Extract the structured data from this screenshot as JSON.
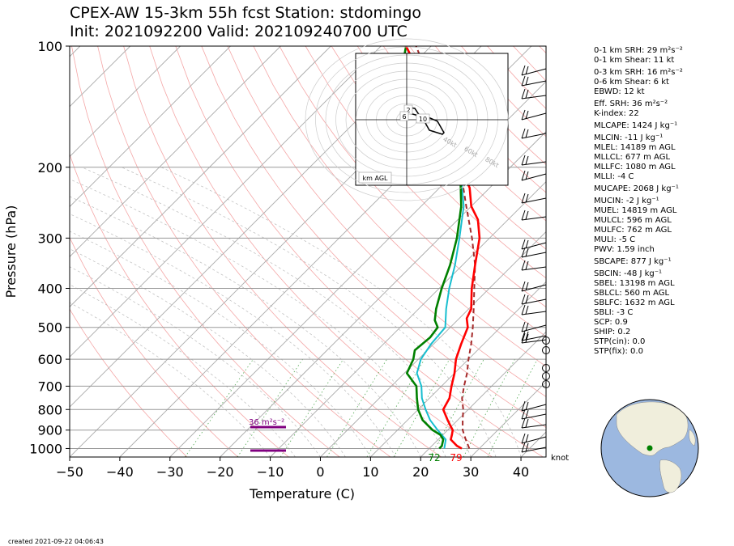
{
  "header": {
    "title_line1": "CPEX-AW 15-3km  55h fcst  Station: stdomingo",
    "title_line2": "Init: 2021092200  Valid: 202109240700 UTC"
  },
  "chart_data": {
    "type": "skew-t",
    "xlabel": "Temperature (C)",
    "ylabel": "Pressure (hPa)",
    "xlim": [
      -50,
      45
    ],
    "ylim": [
      1050,
      100
    ],
    "x_ticks": [
      "−50",
      "−40",
      "−30",
      "−20",
      "−10",
      "0",
      "10",
      "20",
      "30",
      "40"
    ],
    "x_tick_values": [
      -50,
      -40,
      -30,
      -20,
      -10,
      0,
      10,
      20,
      30,
      40
    ],
    "p_ticks": [
      "100",
      "200",
      "300",
      "400",
      "500",
      "600",
      "700",
      "800",
      "900",
      "1000"
    ],
    "p_tick_values": [
      100,
      200,
      300,
      400,
      500,
      600,
      700,
      800,
      900,
      1000
    ],
    "temperature": [
      [
        1000,
        26.5
      ],
      [
        985,
        25.0
      ],
      [
        950,
        22.5
      ],
      [
        925,
        21.8
      ],
      [
        900,
        21.0
      ],
      [
        875,
        19.5
      ],
      [
        850,
        18.0
      ],
      [
        800,
        15.0
      ],
      [
        750,
        14.0
      ],
      [
        700,
        12.0
      ],
      [
        650,
        10.0
      ],
      [
        600,
        7.5
      ],
      [
        550,
        5.5
      ],
      [
        500,
        3.5
      ],
      [
        475,
        1.5
      ],
      [
        450,
        0.5
      ],
      [
        400,
        -3.5
      ],
      [
        350,
        -7.5
      ],
      [
        300,
        -12.0
      ],
      [
        270,
        -16.0
      ],
      [
        250,
        -20.0
      ],
      [
        225,
        -24.0
      ],
      [
        200,
        -30.0
      ],
      [
        175,
        -37.0
      ],
      [
        150,
        -44.0
      ],
      [
        140,
        -47.0
      ],
      [
        125,
        -53.0
      ],
      [
        110,
        -60.0
      ],
      [
        100,
        -65.0
      ]
    ],
    "dewpoint": [
      [
        1000,
        22.0
      ],
      [
        985,
        22.0
      ],
      [
        950,
        21.0
      ],
      [
        925,
        19.5
      ],
      [
        900,
        17.0
      ],
      [
        850,
        13.0
      ],
      [
        800,
        10.0
      ],
      [
        750,
        7.5
      ],
      [
        700,
        5.0
      ],
      [
        650,
        0.5
      ],
      [
        600,
        -1.0
      ],
      [
        570,
        -2.5
      ],
      [
        530,
        -2.0
      ],
      [
        500,
        -2.5
      ],
      [
        480,
        -4.5
      ],
      [
        450,
        -6.5
      ],
      [
        400,
        -9.5
      ],
      [
        350,
        -12.5
      ],
      [
        300,
        -16.5
      ],
      [
        250,
        -22.0
      ],
      [
        200,
        -30.0
      ],
      [
        175,
        -38.0
      ],
      [
        150,
        -45.0
      ],
      [
        125,
        -55.0
      ],
      [
        115,
        -61.0
      ],
      [
        100,
        -65.0
      ]
    ],
    "wet_bulb": [
      [
        1000,
        23.0
      ],
      [
        950,
        21.5
      ],
      [
        900,
        18.0
      ],
      [
        850,
        14.5
      ],
      [
        800,
        11.5
      ],
      [
        750,
        8.5
      ],
      [
        700,
        6.0
      ],
      [
        650,
        2.5
      ],
      [
        600,
        0.5
      ],
      [
        550,
        -0.5
      ],
      [
        500,
        -1.0
      ],
      [
        450,
        -4.5
      ],
      [
        400,
        -8.0
      ],
      [
        350,
        -11.5
      ],
      [
        300,
        -16.0
      ],
      [
        250,
        -21.5
      ],
      [
        200,
        -30.0
      ],
      [
        150,
        -45.0
      ],
      [
        100,
        -65.0
      ]
    ],
    "parcel": [
      [
        1000,
        28.0
      ],
      [
        950,
        25.5
      ],
      [
        900,
        23.0
      ],
      [
        850,
        21.0
      ],
      [
        800,
        19.0
      ],
      [
        750,
        16.5
      ],
      [
        700,
        14.5
      ],
      [
        650,
        12.5
      ],
      [
        600,
        10.0
      ],
      [
        550,
        7.5
      ],
      [
        500,
        4.5
      ],
      [
        450,
        1.0
      ],
      [
        400,
        -3.0
      ],
      [
        350,
        -7.5
      ],
      [
        300,
        -13.5
      ],
      [
        250,
        -21.0
      ],
      [
        200,
        -30.0
      ],
      [
        175,
        -36.0
      ],
      [
        150,
        -43.0
      ],
      [
        125,
        -52.0
      ],
      [
        100,
        -63.0
      ]
    ],
    "dewpoint_label": "72",
    "temperature_label": "79",
    "srh_bar_label": "36 m²s⁻²",
    "wind_unit_label": "knot",
    "hodograph": {
      "height_labels": [
        "2",
        "6",
        "10"
      ],
      "ring_labels": [
        "40kt",
        "60kt",
        "80kt"
      ],
      "box_label": "km AGL"
    },
    "colors": {
      "temperature": "#ff0000",
      "dewpoint": "#008000",
      "wet_bulb": "#17becf",
      "parcel": "#a52a2a",
      "srh_bar": "#800080"
    }
  },
  "params": {
    "srh01": "0-1 km SRH: 29 m²s⁻²",
    "shear01": "0-1 km Shear: 11 kt",
    "srh03": "0-3 km SRH: 16 m²s⁻²",
    "shear06": "0-6 km Shear: 6 kt",
    "ebwd": "EBWD: 12 kt",
    "eff_srh": "Eff. SRH: 36 m²s⁻²",
    "k_index": "K-index: 22",
    "mlcape": "MLCAPE: 1424 J kg⁻¹",
    "mlcin": "MLCIN: -11 J kg⁻¹",
    "mlel": "MLEL: 14189 m AGL",
    "mllcl": "MLLCL: 677 m AGL",
    "mllfc": "MLLFC: 1080 m AGL",
    "mlli": "MLLI: -4 C",
    "mucape": "MUCAPE: 2068 J kg⁻¹",
    "mucin": "MUCIN: -2 J kg⁻¹",
    "muel": "MUEL: 14819 m AGL",
    "mulcl": "MULCL: 596 m AGL",
    "mulfc": "MULFC: 762 m AGL",
    "muli": "MULI: -5 C",
    "pwv": "PWV: 1.59 inch",
    "sbcape": "SBCAPE: 877 J kg⁻¹",
    "sbcin": "SBCIN: -48 J kg⁻¹",
    "sbel": "SBEL: 13198 m AGL",
    "sblcl": "SBLCL: 560 m AGL",
    "sblfc": "SBLFC: 1632 m AGL",
    "sbli": "SBLI: -3 C",
    "scp": "SCP: 0.9",
    "ship": "SHIP: 0.2",
    "stp_cin": "STP(cin): 0.0",
    "stp_fix": "STP(fix): 0.0"
  },
  "footer": {
    "created": "created 2021-09-22 04:06:43"
  }
}
